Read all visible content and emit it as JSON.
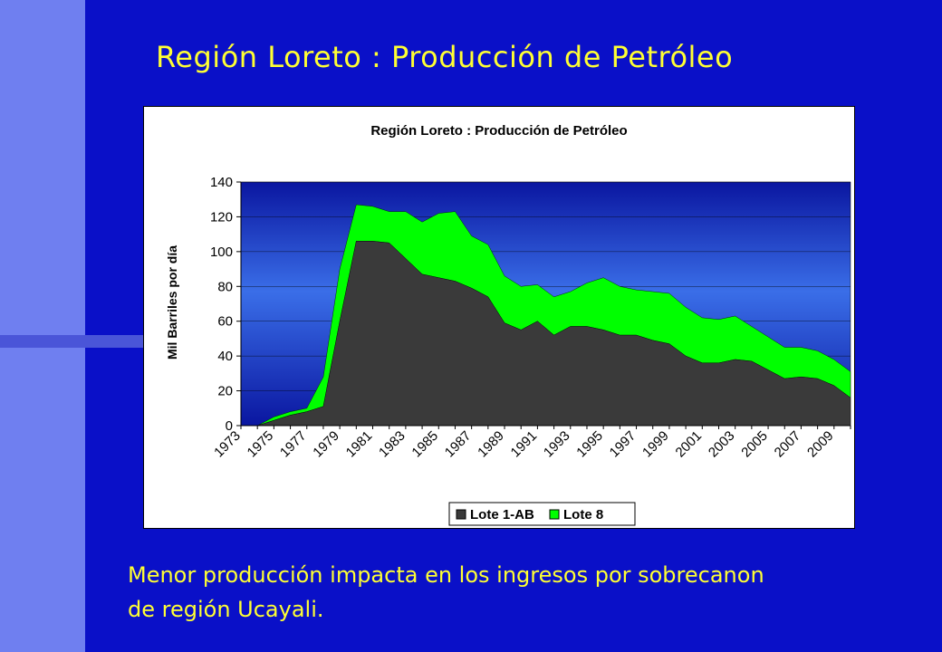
{
  "slide": {
    "title": "Región Loreto : Producción de Petróleo",
    "bottom_line1": "Menor producción impacta en los ingresos por sobrecanon",
    "bottom_line2": "de región Ucayali."
  },
  "colors": {
    "background": "#0a10c8",
    "side_band": "#6f7ff0",
    "text_accent": "#ffff33",
    "series_lote1": "#3a3a3a",
    "series_lote8": "#00ff00"
  },
  "chart_data": {
    "type": "area",
    "stacked": true,
    "title": "Región Loreto : Producción de Petróleo",
    "ylabel": "Mil Barriles por día",
    "xlabel": "",
    "ylim": [
      0,
      140
    ],
    "yticks": [
      0,
      20,
      40,
      60,
      80,
      100,
      120,
      140
    ],
    "x": [
      1973,
      1974,
      1975,
      1976,
      1977,
      1978,
      1979,
      1980,
      1981,
      1982,
      1983,
      1984,
      1985,
      1986,
      1987,
      1988,
      1989,
      1990,
      1991,
      1992,
      1993,
      1994,
      1995,
      1996,
      1997,
      1998,
      1999,
      2000,
      2001,
      2002,
      2003,
      2004,
      2005,
      2006,
      2007,
      2008,
      2009,
      2010
    ],
    "xtick_labels": [
      "1973",
      "1975",
      "1977",
      "1979",
      "1981",
      "1983",
      "1985",
      "1987",
      "1989",
      "1991",
      "1993",
      "1995",
      "1997",
      "1999",
      "2001",
      "2003",
      "2005",
      "2007",
      "2009"
    ],
    "legend_position": "bottom",
    "background": "blue-gradient",
    "series": [
      {
        "name": "Lote 1-AB",
        "values": [
          0,
          0,
          3,
          6,
          8,
          11,
          60,
          106,
          106,
          105,
          96,
          87,
          85,
          83,
          79,
          74,
          59,
          55,
          60,
          52,
          57,
          57,
          55,
          52,
          52,
          49,
          47,
          40,
          36,
          36,
          38,
          37,
          32,
          27,
          28,
          27,
          23,
          16
        ]
      },
      {
        "name": "Lote 8",
        "values": [
          0,
          0,
          2,
          2,
          2,
          17,
          30,
          21,
          20,
          18,
          27,
          30,
          37,
          40,
          30,
          30,
          27,
          25,
          21,
          22,
          20,
          25,
          30,
          28,
          26,
          28,
          29,
          28,
          26,
          25,
          25,
          20,
          19,
          18,
          17,
          16,
          15,
          15
        ]
      }
    ]
  }
}
